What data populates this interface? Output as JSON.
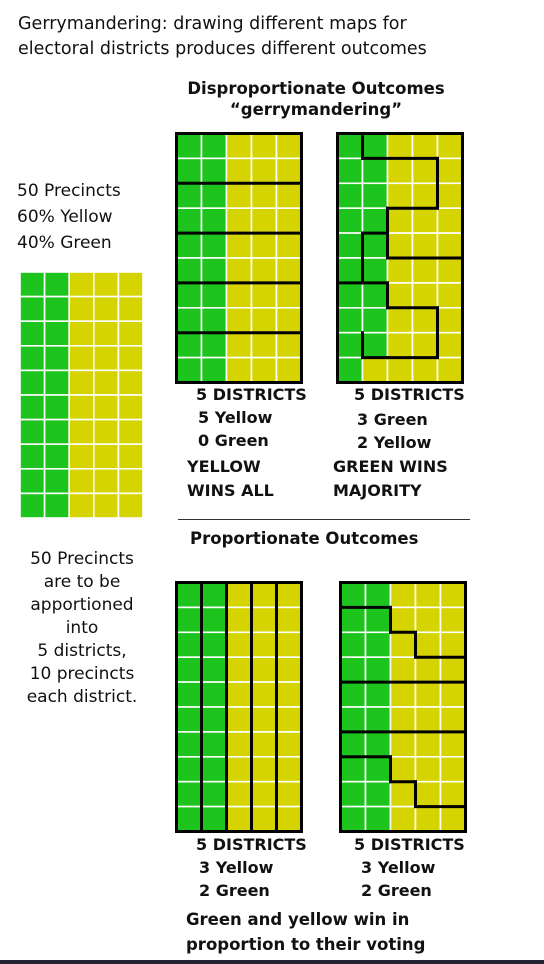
{
  "title": "Gerrymandering: drawing different maps for\nelectoral districts produces different outcomes",
  "left_description": "50 Precincts\n60% Yellow\n40% Green",
  "apportion_text": "50 Precincts\nare to be\napportioned\ninto\n5 districts,\n10 precincts\neach district.",
  "disproportionate_heading": "Disproportionate Outcomes\n“gerrymandering”",
  "proportionate_heading": "Proportionate Outcomes",
  "colors": {
    "green": "#1dc41d",
    "yellow": "#d6d400",
    "grid_line": "#ffffff",
    "border": "#000000"
  },
  "maps": {
    "gerry_a": {
      "districts_label": "5 DISTRICTS",
      "line1": "5 Yellow",
      "line2": "0 Green",
      "result": "YELLOW\nWINS ALL"
    },
    "gerry_b": {
      "districts_label": "5 DISTRICTS",
      "line1": "3 Green",
      "line2": "2 Yellow",
      "result": "GREEN WINS\nMAJORITY"
    },
    "prop_a": {
      "districts_label": "5 DISTRICTS",
      "line1": "3 Yellow",
      "line2": "2 Green"
    },
    "prop_b": {
      "districts_label": "5 DISTRICTS",
      "line1": "3 Yellow",
      "line2": "2 Green"
    }
  },
  "proportion_caption": "Green and yellow win in\nproportion to their voting"
}
